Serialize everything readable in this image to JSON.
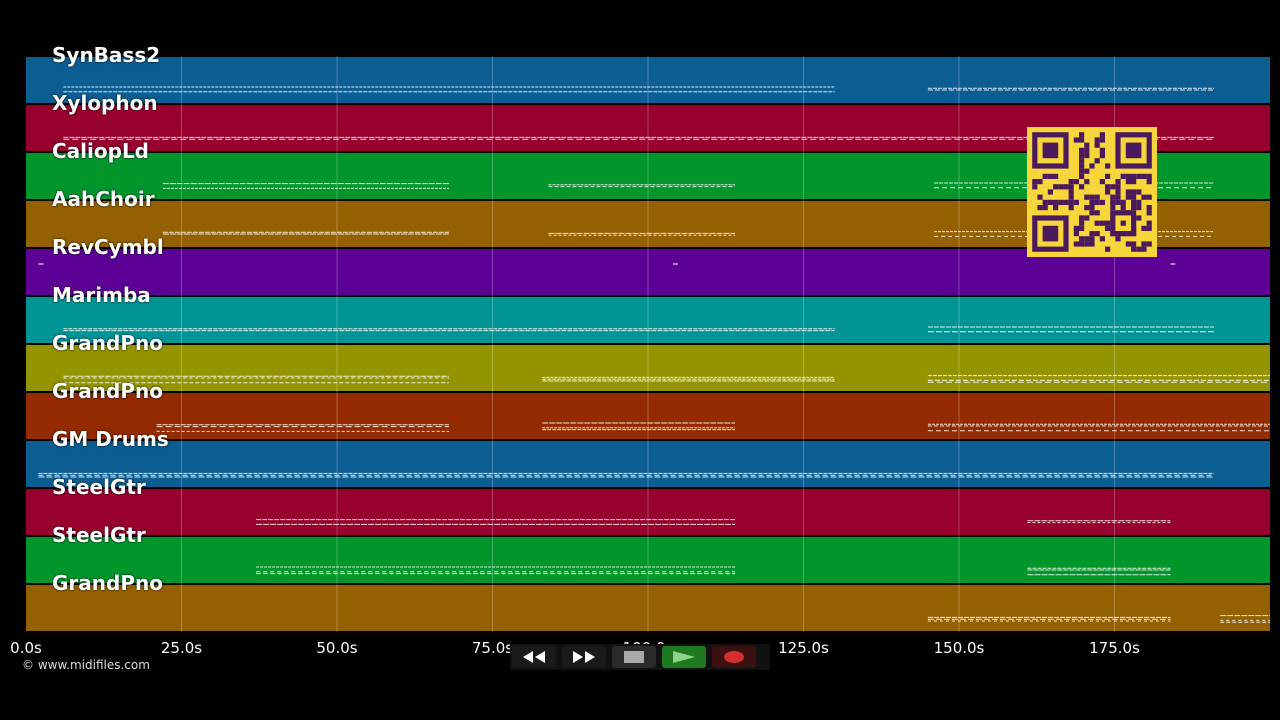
{
  "tracks": [
    {
      "label": "SynBass2",
      "color": "#0b5d92"
    },
    {
      "label": "Xylophon",
      "color": "#98002e"
    },
    {
      "label": "CaliopLd",
      "color": "#00962b"
    },
    {
      "label": "AahChoir",
      "color": "#946000"
    },
    {
      "label": "RevCymbl",
      "color": "#5c0096"
    },
    {
      "label": "Marimba",
      "color": "#009494"
    },
    {
      "label": "GrandPno",
      "color": "#949400"
    },
    {
      "label": "GrandPno",
      "color": "#942b00"
    },
    {
      "label": "GM Drums",
      "color": "#0b5d92"
    },
    {
      "label": "SteelGtr",
      "color": "#98002e"
    },
    {
      "label": "SteelGtr",
      "color": "#00962b"
    },
    {
      "label": "GrandPno",
      "color": "#946000"
    }
  ],
  "time_axis": {
    "max_seconds": 200,
    "ticks": [
      {
        "value": 0,
        "label": "0.0s"
      },
      {
        "value": 25,
        "label": "25.0s"
      },
      {
        "value": 50,
        "label": "50.0s"
      },
      {
        "value": 75,
        "label": "75.0s"
      },
      {
        "value": 100,
        "label": "100.0s"
      },
      {
        "value": 125,
        "label": "125.0s"
      },
      {
        "value": 150,
        "label": "150.0s"
      },
      {
        "value": 175,
        "label": "175.0s"
      }
    ]
  },
  "copyright": "© www.midifiles.com",
  "transport": {
    "rewind_icon": "rewind-icon",
    "fast_forward_icon": "fast-forward-icon",
    "stop_icon": "stop-icon",
    "play_icon": "play-icon",
    "record_icon": "record-icon",
    "play_color": "#1f7a1f",
    "record_color": "#d23030"
  },
  "note_segments": [
    {
      "track": 0,
      "start": 6,
      "end": 130
    },
    {
      "track": 0,
      "start": 145,
      "end": 191
    },
    {
      "track": 1,
      "start": 6,
      "end": 191
    },
    {
      "track": 2,
      "start": 22,
      "end": 68
    },
    {
      "track": 2,
      "start": 84,
      "end": 114
    },
    {
      "track": 2,
      "start": 146,
      "end": 191
    },
    {
      "track": 3,
      "start": 22,
      "end": 68
    },
    {
      "track": 3,
      "start": 84,
      "end": 114
    },
    {
      "track": 3,
      "start": 146,
      "end": 191
    },
    {
      "track": 5,
      "start": 6,
      "end": 130
    },
    {
      "track": 5,
      "start": 145,
      "end": 191
    },
    {
      "track": 6,
      "start": 6,
      "end": 68
    },
    {
      "track": 6,
      "start": 83,
      "end": 130
    },
    {
      "track": 6,
      "start": 145,
      "end": 200
    },
    {
      "track": 7,
      "start": 21,
      "end": 68
    },
    {
      "track": 7,
      "start": 83,
      "end": 114
    },
    {
      "track": 7,
      "start": 145,
      "end": 200
    },
    {
      "track": 8,
      "start": 2,
      "end": 191
    },
    {
      "track": 9,
      "start": 37,
      "end": 114
    },
    {
      "track": 9,
      "start": 161,
      "end": 184
    },
    {
      "track": 10,
      "start": 37,
      "end": 114
    },
    {
      "track": 10,
      "start": 161,
      "end": 184
    },
    {
      "track": 11,
      "start": 145,
      "end": 184
    },
    {
      "track": 11,
      "start": 192,
      "end": 200
    }
  ]
}
